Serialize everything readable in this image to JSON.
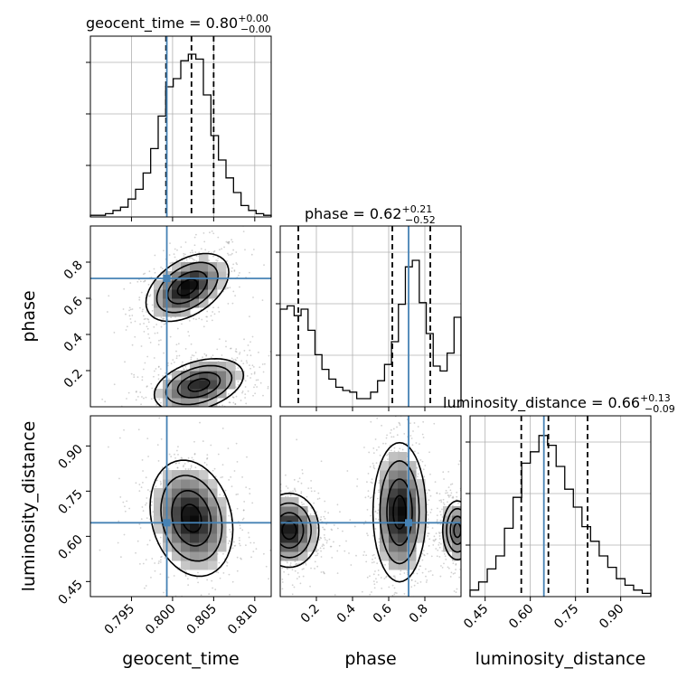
{
  "figure": {
    "background": "#ffffff",
    "truth_color": "#4682b4",
    "line_color": "#000000"
  },
  "chart_data": {
    "type": "corner",
    "parameters": [
      "geocent_time",
      "phase",
      "luminosity_distance"
    ],
    "titles": {
      "geocent_time": {
        "name": "geocent_time",
        "median": "0.80",
        "plus": "+0.00",
        "minus": "−0.00"
      },
      "phase": {
        "name": "phase",
        "median": "0.62",
        "plus": "+0.21",
        "minus": "−0.52"
      },
      "luminosity_distance": {
        "name": "luminosity_distance",
        "median": "0.66",
        "plus": "+0.13",
        "minus": "−0.09"
      }
    },
    "ranges": {
      "geocent_time": [
        0.79,
        0.812
      ],
      "phase": [
        0.0,
        1.0
      ],
      "luminosity_distance": [
        0.4,
        1.0
      ]
    },
    "ticks": {
      "geocent_time": [
        0.795,
        0.8,
        0.805,
        0.81
      ],
      "phase": [
        0.2,
        0.4,
        0.6,
        0.8
      ],
      "luminosity_distance": [
        0.45,
        0.6,
        0.75,
        0.9
      ]
    },
    "tick_labels": {
      "geocent_time": [
        "0.795",
        "0.800",
        "0.805",
        "0.810"
      ],
      "phase": [
        "0.2",
        "0.4",
        "0.6",
        "0.8"
      ],
      "luminosity_distance": [
        "0.45",
        "0.60",
        "0.75",
        "0.90"
      ]
    },
    "truths": {
      "geocent_time": 0.7993,
      "phase": 0.71,
      "luminosity_distance": 0.645
    },
    "quantiles": {
      "geocent_time": [
        0.7992,
        0.8023,
        0.805
      ],
      "phase": [
        0.1,
        0.62,
        0.83
      ],
      "luminosity_distance": [
        0.57,
        0.66,
        0.79
      ]
    },
    "histograms": {
      "geocent_time": [
        0.01,
        0.01,
        0.02,
        0.04,
        0.06,
        0.11,
        0.17,
        0.27,
        0.42,
        0.62,
        0.8,
        0.85,
        0.96,
        1.0,
        0.97,
        0.75,
        0.5,
        0.35,
        0.24,
        0.15,
        0.07,
        0.04,
        0.02,
        0.01
      ],
      "phase": [
        0.6,
        0.62,
        0.56,
        0.6,
        0.47,
        0.32,
        0.23,
        0.17,
        0.12,
        0.1,
        0.09,
        0.05,
        0.05,
        0.09,
        0.16,
        0.26,
        0.4,
        0.63,
        0.86,
        0.9,
        0.64,
        0.45,
        0.25,
        0.22,
        0.33,
        0.55
      ],
      "luminosity_distance": [
        0.04,
        0.09,
        0.17,
        0.25,
        0.42,
        0.61,
        0.82,
        0.89,
        0.99,
        0.93,
        0.8,
        0.66,
        0.55,
        0.43,
        0.34,
        0.25,
        0.18,
        0.11,
        0.07,
        0.04,
        0.02
      ]
    },
    "pairs": [
      {
        "x": "geocent_time",
        "y": "phase",
        "modes": [
          {
            "cx": 0.8018,
            "cy": 0.66,
            "sx": 0.0024,
            "sy": 0.08,
            "w": 1.0,
            "rot": -0.5
          },
          {
            "cx": 0.8032,
            "cy": 0.12,
            "sx": 0.0028,
            "sy": 0.07,
            "w": 0.85,
            "rot": -0.4
          }
        ]
      },
      {
        "x": "geocent_time",
        "y": "luminosity_distance",
        "modes": [
          {
            "cx": 0.8023,
            "cy": 0.66,
            "sx": 0.0024,
            "sy": 0.09,
            "w": 1.0,
            "rot": 0.2
          }
        ]
      },
      {
        "x": "phase",
        "y": "luminosity_distance",
        "modes": [
          {
            "cx": 0.05,
            "cy": 0.62,
            "sx": 0.08,
            "sy": 0.06,
            "w": 0.95,
            "rot": 0
          },
          {
            "cx": 0.66,
            "cy": 0.68,
            "sx": 0.07,
            "sy": 0.11,
            "w": 1.0,
            "rot": 0
          },
          {
            "cx": 0.98,
            "cy": 0.62,
            "sx": 0.05,
            "sy": 0.06,
            "w": 0.6,
            "rot": 0
          }
        ]
      }
    ]
  }
}
